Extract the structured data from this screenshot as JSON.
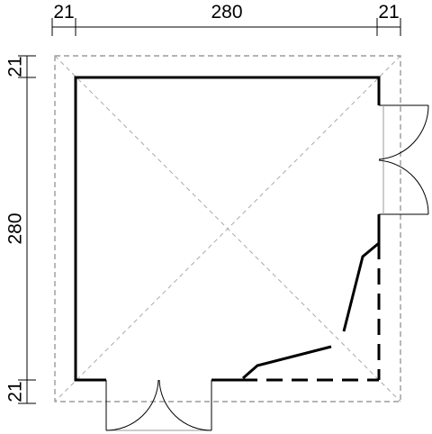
{
  "dimensions": {
    "top_left": "21",
    "top_middle": "280",
    "top_right": "21",
    "left_top": "21",
    "left_middle": "280",
    "left_bottom": "21"
  }
}
